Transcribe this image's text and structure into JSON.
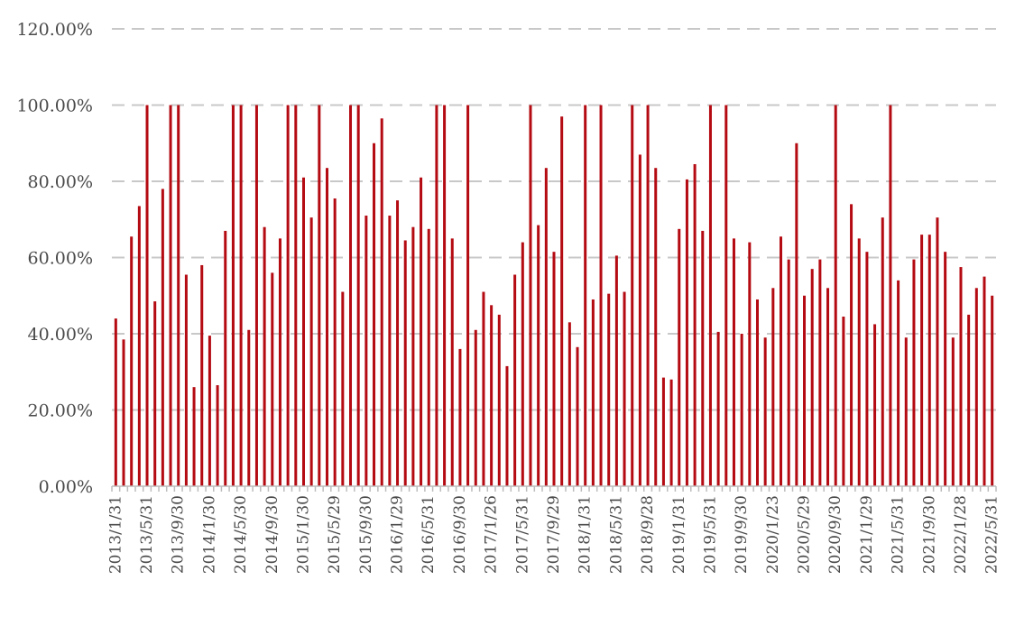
{
  "chart_data": {
    "type": "bar",
    "title": "",
    "xlabel": "",
    "ylabel": "",
    "ylim": [
      0,
      120
    ],
    "y_ticks": [
      "0.00%",
      "20.00%",
      "40.00%",
      "60.00%",
      "80.00%",
      "100.00%",
      "120.00%"
    ],
    "grid": true,
    "legend": "none",
    "bar_color": "#b40a12",
    "x_tick_labels": [
      "2013/1/31",
      "2013/5/31",
      "2013/9/30",
      "2014/1/30",
      "2014/5/30",
      "2014/9/30",
      "2015/1/30",
      "2015/5/29",
      "2015/9/30",
      "2016/1/29",
      "2016/5/31",
      "2016/9/30",
      "2017/1/26",
      "2017/5/31",
      "2017/9/29",
      "2018/1/31",
      "2018/5/31",
      "2018/9/28",
      "2019/1/31",
      "2019/5/31",
      "2019/9/30",
      "2020/1/23",
      "2020/5/29",
      "2020/9/30",
      "2021/1/29",
      "2021/5/31",
      "2021/9/30",
      "2022/1/28",
      "2022/5/31"
    ],
    "values": [
      44,
      38.5,
      65.5,
      73.5,
      100,
      48.5,
      78,
      100,
      100,
      55.5,
      26,
      58,
      39.5,
      26.5,
      67,
      100,
      100,
      41,
      100,
      68,
      56,
      65,
      100,
      100,
      81,
      70.5,
      100,
      83.5,
      75.5,
      51,
      100,
      100,
      71,
      90,
      96.5,
      71,
      75,
      64.5,
      68,
      81,
      67.5,
      100,
      100,
      65,
      36,
      100,
      41,
      51,
      47.5,
      45,
      31.5,
      55.5,
      64,
      100,
      68.5,
      83.5,
      61.5,
      97,
      43,
      36.5,
      100,
      49,
      100,
      50.5,
      60.5,
      51,
      100,
      87,
      100,
      83.5,
      28.5,
      28,
      67.5,
      80.5,
      84.5,
      67,
      100,
      40.5,
      100,
      65,
      40,
      64,
      49,
      39,
      52,
      65.5,
      59.5,
      90,
      50,
      57,
      59.5,
      52,
      100,
      44.5,
      74,
      65,
      61.5,
      42.5,
      70.5,
      100,
      54,
      39,
      59.5,
      66,
      66,
      70.5,
      61.5,
      39,
      57.5,
      45,
      52,
      55,
      50
    ]
  }
}
